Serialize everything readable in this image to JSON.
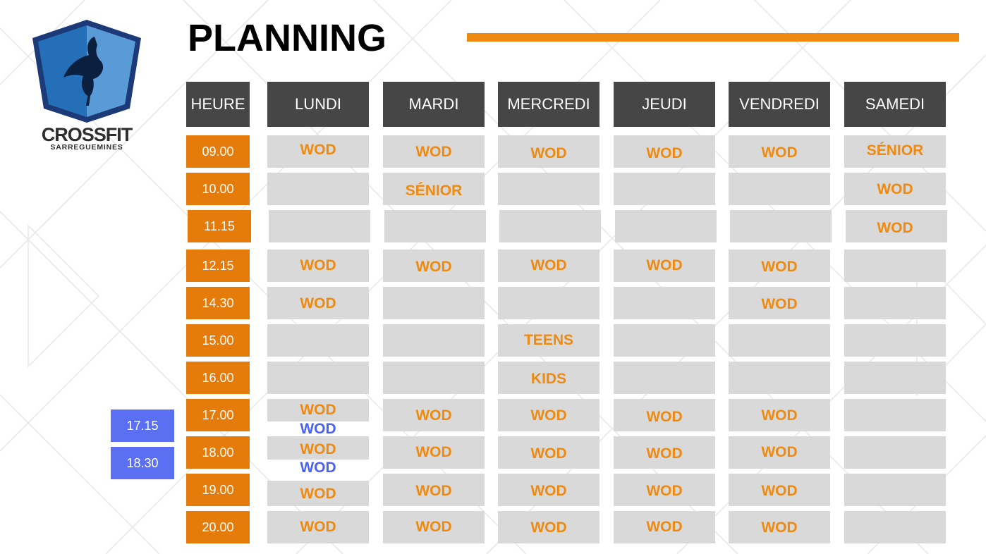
{
  "logo": {
    "title": "CROSSFIT",
    "subtitle": "SARREGUEMINES"
  },
  "page_title": "PLANNING",
  "colors": {
    "accent": "#ef8a10",
    "time_bg": "#e47b0b",
    "header_bg": "#464646",
    "cell_bg": "#d9d9d9",
    "blue": "#4a63f2",
    "extra_time_bg": "#5b6ff2"
  },
  "headers": [
    "HEURE",
    "LUNDI",
    "MARDI",
    "MERCREDI",
    "JEUDI",
    "VENDREDI",
    "SAMEDI"
  ],
  "times": [
    "09.00",
    "10.00",
    "11.15",
    "12.15",
    "14.30",
    "15.00",
    "16.00",
    "17.00",
    "18.00",
    "19.00",
    "20.00"
  ],
  "extra_times": [
    "17.15",
    "18.30"
  ],
  "schedule": [
    [
      "WOD",
      "WOD",
      "WOD",
      "WOD",
      "WOD",
      "SÉNIOR"
    ],
    [
      "",
      "SÉNIOR",
      "",
      "",
      "",
      "WOD"
    ],
    [
      "",
      "",
      "",
      "",
      "",
      "WOD"
    ],
    [
      "WOD",
      "WOD",
      "WOD",
      "WOD",
      "WOD",
      ""
    ],
    [
      "WOD",
      "",
      "",
      "",
      "WOD",
      ""
    ],
    [
      "",
      "",
      "TEENS",
      "",
      "",
      ""
    ],
    [
      "",
      "",
      "KIDS",
      "",
      "",
      ""
    ],
    [
      "WOD",
      "WOD",
      "WOD",
      "WOD",
      "WOD",
      ""
    ],
    [
      "WOD",
      "WOD",
      "WOD",
      "WOD",
      "WOD",
      ""
    ],
    [
      "WOD",
      "WOD",
      "WOD",
      "WOD",
      "WOD",
      ""
    ],
    [
      "WOD",
      "WOD",
      "WOD",
      "WOD",
      "WOD",
      ""
    ]
  ],
  "extra_sessions": [
    "WOD",
    "WOD"
  ]
}
